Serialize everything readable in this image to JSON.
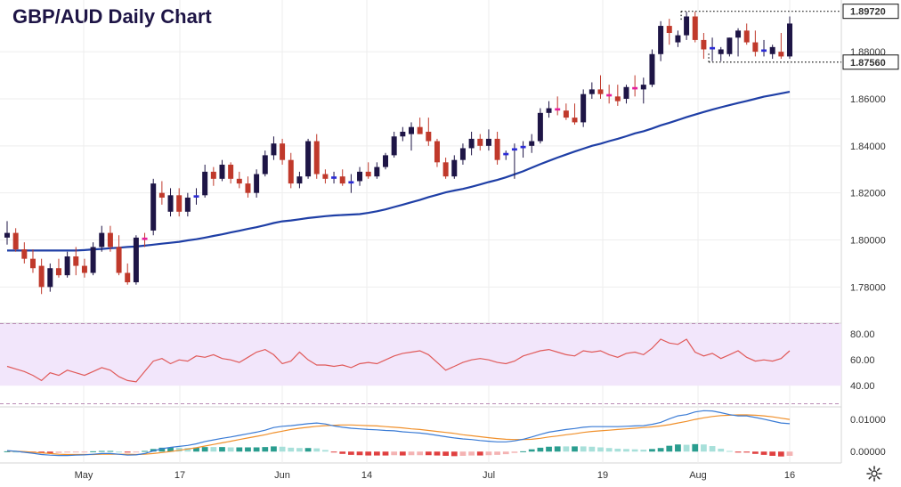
{
  "title": "GBP/AUD Daily Chart",
  "colors": {
    "up": "#1e1546",
    "down": "#c0392b",
    "doji_up": "#2b2bd6",
    "doji_down": "#e61e9b",
    "ma": "#1f3fa6",
    "rsi": "#e05a5a",
    "rsi_band": "#f2e6fb",
    "macd": "#3a7bd5",
    "signal": "#f0902b",
    "hist_pos_strong": "#2a9d8f",
    "hist_pos_weak": "#a8e0da",
    "hist_neg_strong": "#e04040",
    "hist_neg_weak": "#f4b3b3"
  },
  "chart_data": [
    {
      "type": "candlestick",
      "title": "GBP/AUD Daily Chart",
      "ylim": [
        1.765,
        1.902
      ],
      "y_ticks": [
        "1.78000",
        "1.80000",
        "1.82000",
        "1.84000",
        "1.86000",
        "1.88000"
      ],
      "x_ticks": [
        "May",
        "17",
        "Jun",
        "14",
        "Jul",
        "19",
        "Aug",
        "16"
      ],
      "annotations": [
        {
          "label": "1.89720",
          "value": 1.8972
        },
        {
          "label": "1.87560",
          "value": 1.8756
        }
      ],
      "candles": [
        [
          1.801,
          1.808,
          1.798,
          1.803
        ],
        [
          1.803,
          1.805,
          1.795,
          1.796
        ],
        [
          1.796,
          1.799,
          1.79,
          1.792
        ],
        [
          1.792,
          1.796,
          1.786,
          1.788
        ],
        [
          1.789,
          1.792,
          1.777,
          1.78
        ],
        [
          1.78,
          1.79,
          1.778,
          1.788
        ],
        [
          1.788,
          1.792,
          1.784,
          1.785
        ],
        [
          1.785,
          1.795,
          1.784,
          1.793
        ],
        [
          1.793,
          1.797,
          1.785,
          1.789
        ],
        [
          1.789,
          1.792,
          1.784,
          1.786
        ],
        [
          1.786,
          1.799,
          1.785,
          1.797
        ],
        [
          1.797,
          1.806,
          1.795,
          1.803
        ],
        [
          1.803,
          1.806,
          1.795,
          1.797
        ],
        [
          1.797,
          1.802,
          1.785,
          1.786
        ],
        [
          1.786,
          1.79,
          1.781,
          1.782
        ],
        [
          1.782,
          1.802,
          1.781,
          1.801
        ],
        [
          1.801,
          1.803,
          1.797,
          1.8
        ],
        [
          1.804,
          1.826,
          1.802,
          1.824
        ],
        [
          1.82,
          1.825,
          1.815,
          1.818
        ],
        [
          1.812,
          1.822,
          1.81,
          1.819
        ],
        [
          1.819,
          1.822,
          1.81,
          1.812
        ],
        [
          1.812,
          1.82,
          1.81,
          1.818
        ],
        [
          1.818,
          1.822,
          1.815,
          1.819
        ],
        [
          1.819,
          1.832,
          1.818,
          1.829
        ],
        [
          1.829,
          1.831,
          1.823,
          1.826
        ],
        [
          1.826,
          1.834,
          1.825,
          1.832
        ],
        [
          1.832,
          1.833,
          1.824,
          1.826
        ],
        [
          1.826,
          1.829,
          1.822,
          1.824
        ],
        [
          1.824,
          1.827,
          1.818,
          1.82
        ],
        [
          1.82,
          1.83,
          1.818,
          1.828
        ],
        [
          1.828,
          1.838,
          1.827,
          1.836
        ],
        [
          1.836,
          1.844,
          1.834,
          1.841
        ],
        [
          1.841,
          1.843,
          1.832,
          1.834
        ],
        [
          1.834,
          1.837,
          1.822,
          1.824
        ],
        [
          1.824,
          1.829,
          1.822,
          1.827
        ],
        [
          1.827,
          1.843,
          1.826,
          1.842
        ],
        [
          1.842,
          1.845,
          1.826,
          1.828
        ],
        [
          1.828,
          1.83,
          1.824,
          1.826
        ],
        [
          1.826,
          1.829,
          1.824,
          1.827
        ],
        [
          1.827,
          1.83,
          1.823,
          1.824
        ],
        [
          1.824,
          1.828,
          1.82,
          1.825
        ],
        [
          1.825,
          1.831,
          1.823,
          1.829
        ],
        [
          1.829,
          1.833,
          1.826,
          1.827
        ],
        [
          1.827,
          1.833,
          1.826,
          1.831
        ],
        [
          1.831,
          1.837,
          1.83,
          1.836
        ],
        [
          1.836,
          1.846,
          1.835,
          1.844
        ],
        [
          1.844,
          1.848,
          1.842,
          1.846
        ],
        [
          1.845,
          1.85,
          1.838,
          1.848
        ],
        [
          1.848,
          1.852,
          1.845,
          1.845
        ],
        [
          1.846,
          1.852,
          1.84,
          1.842
        ],
        [
          1.842,
          1.843,
          1.831,
          1.833
        ],
        [
          1.833,
          1.835,
          1.826,
          1.827
        ],
        [
          1.827,
          1.836,
          1.826,
          1.834
        ],
        [
          1.834,
          1.841,
          1.832,
          1.839
        ],
        [
          1.839,
          1.846,
          1.836,
          1.843
        ],
        [
          1.843,
          1.845,
          1.838,
          1.84
        ],
        [
          1.84,
          1.847,
          1.838,
          1.843
        ],
        [
          1.843,
          1.846,
          1.832,
          1.834
        ],
        [
          1.836,
          1.838,
          1.834,
          1.837
        ],
        [
          1.838,
          1.841,
          1.826,
          1.839
        ],
        [
          1.839,
          1.842,
          1.835,
          1.84
        ],
        [
          1.84,
          1.845,
          1.837,
          1.842
        ],
        [
          1.842,
          1.856,
          1.841,
          1.854
        ],
        [
          1.854,
          1.859,
          1.852,
          1.856
        ],
        [
          1.856,
          1.861,
          1.853,
          1.855
        ],
        [
          1.855,
          1.858,
          1.851,
          1.852
        ],
        [
          1.852,
          1.858,
          1.849,
          1.85
        ],
        [
          1.85,
          1.864,
          1.848,
          1.862
        ],
        [
          1.862,
          1.867,
          1.86,
          1.864
        ],
        [
          1.864,
          1.87,
          1.86,
          1.862
        ],
        [
          1.862,
          1.866,
          1.858,
          1.861
        ],
        [
          1.861,
          1.866,
          1.857,
          1.859
        ],
        [
          1.86,
          1.866,
          1.858,
          1.865
        ],
        [
          1.865,
          1.87,
          1.861,
          1.864
        ],
        [
          1.864,
          1.869,
          1.858,
          1.866
        ],
        [
          1.866,
          1.881,
          1.865,
          1.879
        ],
        [
          1.879,
          1.893,
          1.876,
          1.891
        ],
        [
          1.891,
          1.894,
          1.883,
          1.888
        ],
        [
          1.884,
          1.889,
          1.882,
          1.887
        ],
        [
          1.887,
          1.897,
          1.885,
          1.895
        ],
        [
          1.895,
          1.897,
          1.884,
          1.885
        ],
        [
          1.885,
          1.888,
          1.877,
          1.881
        ],
        [
          1.881,
          1.886,
          1.876,
          1.882
        ],
        [
          1.879,
          1.882,
          1.876,
          1.881
        ],
        [
          1.879,
          1.886,
          1.878,
          1.886
        ],
        [
          1.886,
          1.89,
          1.878,
          1.889
        ],
        [
          1.889,
          1.892,
          1.883,
          1.884
        ],
        [
          1.884,
          1.889,
          1.878,
          1.88
        ],
        [
          1.88,
          1.885,
          1.878,
          1.881
        ],
        [
          1.879,
          1.883,
          1.877,
          1.882
        ],
        [
          1.88,
          1.888,
          1.877,
          1.878
        ],
        [
          1.878,
          1.895,
          1.877,
          1.892
        ]
      ],
      "moving_average": [
        1.7955,
        1.7955,
        1.7955,
        1.7955,
        1.7955,
        1.7955,
        1.7955,
        1.7955,
        1.7955,
        1.7957,
        1.796,
        1.7962,
        1.7965,
        1.7967,
        1.797,
        1.7972,
        1.7976,
        1.798,
        1.7984,
        1.7988,
        1.7992,
        1.7998,
        1.8003,
        1.801,
        1.8017,
        1.8024,
        1.8032,
        1.8039,
        1.8047,
        1.8054,
        1.8063,
        1.8072,
        1.8079,
        1.8083,
        1.8088,
        1.8093,
        1.8097,
        1.8101,
        1.8104,
        1.8106,
        1.8108,
        1.811,
        1.8115,
        1.8122,
        1.813,
        1.814,
        1.815,
        1.816,
        1.817,
        1.8182,
        1.8192,
        1.8202,
        1.821,
        1.8217,
        1.8226,
        1.8236,
        1.8246,
        1.8255,
        1.8266,
        1.8279,
        1.8292,
        1.8307,
        1.8322,
        1.8336,
        1.835,
        1.8363,
        1.8376,
        1.8388,
        1.84,
        1.8409,
        1.842,
        1.843,
        1.8441,
        1.8453,
        1.8462,
        1.8474,
        1.8487,
        1.8498,
        1.851,
        1.8522,
        1.8533,
        1.8544,
        1.8554,
        1.8564,
        1.8573,
        1.8582,
        1.8591,
        1.86,
        1.8609,
        1.8616,
        1.8623,
        1.863
      ]
    },
    {
      "type": "line",
      "name": "RSI",
      "ylim": [
        25,
        87
      ],
      "y_ticks": [
        "80.00",
        "60.00",
        "40.00"
      ],
      "band": [
        40,
        70
      ],
      "values": [
        55,
        53,
        51,
        48,
        44,
        50,
        48,
        52,
        50,
        48,
        51,
        54,
        52,
        47,
        44,
        43,
        51,
        59,
        61,
        57,
        60,
        59,
        63,
        62,
        64,
        61,
        60,
        58,
        62,
        66,
        68,
        64,
        57,
        59,
        66,
        60,
        56,
        56,
        55,
        56,
        54,
        57,
        58,
        57,
        60,
        63,
        65,
        66,
        67,
        64,
        58,
        52,
        55,
        58,
        60,
        61,
        60,
        58,
        57,
        59,
        63,
        65,
        67,
        68,
        66,
        64,
        63,
        67,
        66,
        67,
        64,
        62,
        65,
        66,
        64,
        69,
        76,
        73,
        72,
        76,
        66,
        63,
        65,
        61,
        64,
        67,
        62,
        59,
        60,
        59,
        61,
        67
      ]
    },
    {
      "type": "bar",
      "name": "MACD",
      "ylim": [
        -0.0035,
        0.0135
      ],
      "y_ticks": [
        "0.01000",
        "0.00000"
      ],
      "macd": [
        0.0003,
        0.0001,
        -0.0002,
        -0.0005,
        -0.0009,
        -0.0011,
        -0.0012,
        -0.0012,
        -0.0011,
        -0.001,
        -0.0008,
        -0.0006,
        -0.0006,
        -0.0008,
        -0.0011,
        -0.001,
        -0.0006,
        0.0002,
        0.0009,
        0.0013,
        0.0016,
        0.0019,
        0.0024,
        0.0031,
        0.0036,
        0.0041,
        0.0045,
        0.005,
        0.0055,
        0.006,
        0.0066,
        0.0074,
        0.0078,
        0.008,
        0.0083,
        0.0086,
        0.0088,
        0.0085,
        0.0079,
        0.0075,
        0.0072,
        0.007,
        0.0068,
        0.0067,
        0.0065,
        0.0064,
        0.0061,
        0.0059,
        0.0057,
        0.0054,
        0.005,
        0.0046,
        0.0042,
        0.0039,
        0.0037,
        0.0034,
        0.0032,
        0.003,
        0.003,
        0.0033,
        0.0038,
        0.0045,
        0.0053,
        0.006,
        0.0064,
        0.0068,
        0.0071,
        0.0075,
        0.0077,
        0.0077,
        0.0077,
        0.0077,
        0.0078,
        0.0079,
        0.008,
        0.0084,
        0.009,
        0.0101,
        0.011,
        0.0114,
        0.0122,
        0.0126,
        0.0125,
        0.012,
        0.0114,
        0.011,
        0.011,
        0.0105,
        0.01,
        0.0094,
        0.0088,
        0.0086
      ],
      "signal": [
        0.0002,
        0.0001,
        0.0,
        -0.0002,
        -0.0004,
        -0.0006,
        -0.0008,
        -0.0009,
        -0.0009,
        -0.0009,
        -0.0009,
        -0.0008,
        -0.0008,
        -0.0008,
        -0.0008,
        -0.0009,
        -0.0008,
        -0.0006,
        -0.0003,
        0.0,
        0.0004,
        0.0008,
        0.0012,
        0.0017,
        0.0022,
        0.0027,
        0.0032,
        0.0037,
        0.0042,
        0.0047,
        0.0052,
        0.0058,
        0.0063,
        0.0068,
        0.0072,
        0.0075,
        0.0078,
        0.008,
        0.0081,
        0.0082,
        0.0082,
        0.0081,
        0.008,
        0.0079,
        0.0077,
        0.0075,
        0.0073,
        0.007,
        0.0068,
        0.0065,
        0.0062,
        0.0059,
        0.0056,
        0.0052,
        0.0049,
        0.0046,
        0.0043,
        0.004,
        0.0038,
        0.0037,
        0.0037,
        0.0038,
        0.0041,
        0.0045,
        0.0048,
        0.0052,
        0.0055,
        0.0059,
        0.0062,
        0.0064,
        0.0066,
        0.0068,
        0.007,
        0.0072,
        0.0074,
        0.0076,
        0.0079,
        0.0083,
        0.0088,
        0.0093,
        0.0099,
        0.0104,
        0.0108,
        0.0111,
        0.0112,
        0.0113,
        0.0113,
        0.0112,
        0.011,
        0.0107,
        0.0103,
        0.0099
      ]
    }
  ]
}
